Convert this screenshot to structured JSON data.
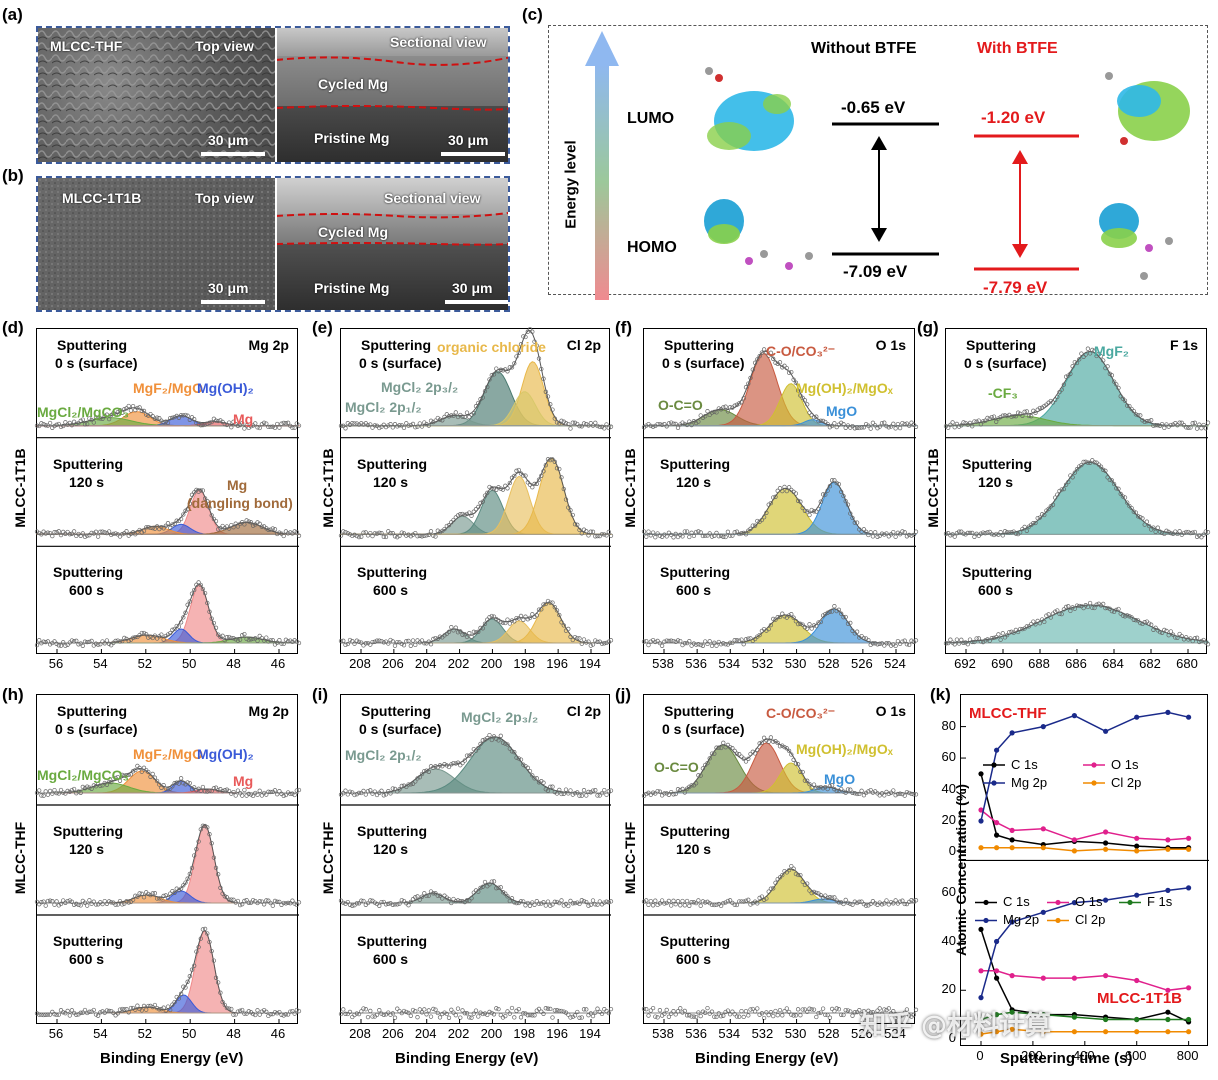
{
  "panels": {
    "a": "(a)",
    "b": "(b)",
    "c": "(c)",
    "d": "(d)",
    "e": "(e)",
    "f": "(f)",
    "g": "(g)",
    "h": "(h)",
    "i": "(i)",
    "j": "(j)",
    "k": "(k)"
  },
  "sem": {
    "a": {
      "sample": "MLCC-THF",
      "top": "Top view",
      "section": "Sectional view",
      "cycled": "Cycled Mg",
      "pristine": "Pristine Mg",
      "scale": "30 μm"
    },
    "b": {
      "sample": "MLCC-1T1B",
      "top": "Top view",
      "section": "Sectional view",
      "cycled": "Cycled Mg",
      "pristine": "Pristine Mg",
      "scale": "30 μm"
    }
  },
  "energy": {
    "axis_label": "Energy level",
    "without": "Without BTFE",
    "with": "With BTFE",
    "lumo": "LUMO",
    "homo": "HOMO",
    "without_lumo": "-0.65 eV",
    "without_homo": "-7.09 eV",
    "with_lumo": "-1.20 eV",
    "with_homo": "-7.79 eV",
    "red": "#e31a1c"
  },
  "xps": {
    "sputter0": "Sputtering",
    "sputter0b": "0 s (surface)",
    "sputter120": "Sputtering",
    "sputter120b": "120 s",
    "sputter600": "Sputtering",
    "sputter600b": "600 s",
    "mg2p": "Mg 2p",
    "cl2p": "Cl 2p",
    "o1s": "O 1s",
    "f1s": "F 1s",
    "xlabel": "Binding Energy (eV)",
    "ylabel_1t1b": "MLCC-1T1B",
    "ylabel_thf": "MLCC-THF",
    "mg_ticks": [
      "56",
      "54",
      "52",
      "50",
      "48",
      "46"
    ],
    "cl_ticks": [
      "208",
      "206",
      "204",
      "202",
      "200",
      "198",
      "196",
      "194"
    ],
    "o_ticks": [
      "538",
      "536",
      "534",
      "532",
      "530",
      "528",
      "526",
      "524"
    ],
    "f_ticks": [
      "692",
      "690",
      "688",
      "686",
      "684",
      "682",
      "680"
    ],
    "labels": {
      "mgf2mgo": "MgF₂/MgO",
      "mgoh2": "Mg(OH)₂",
      "mgcl2co3": "MgCl₂/MgCO₃",
      "mg": "Mg",
      "mg_dangling": "Mg",
      "mg_dangling2": "(dangling bond)",
      "organic_chloride": "organic chloride",
      "mgcl2_32": "MgCl₂ 2p₃/₂",
      "mgcl2_12": "MgCl₂ 2p₁/₂",
      "co_co3": "C-O/CO₃²⁻",
      "mgoh2_mgox": "Mg(OH)₂/MgOₓ",
      "oco": "O-C=O",
      "mgo": "MgO",
      "mgf2": "MgF₂",
      "cf3": "-CF₃"
    }
  },
  "chart_data": {
    "type": "line",
    "xlabel": "Sputtering time (s)",
    "ylabel": "Atomic Concentration (%)",
    "x": [
      0,
      60,
      120,
      240,
      360,
      480,
      600,
      720,
      800
    ],
    "panels": [
      {
        "title": "MLCC-THF",
        "ylim": [
          0,
          95
        ],
        "yticks": [
          "0",
          "20",
          "40",
          "60",
          "80"
        ],
        "series": [
          {
            "name": "C 1s",
            "color": "#000000",
            "values": [
              50,
              11,
              8,
              5,
              7,
              6,
              4,
              3,
              3
            ]
          },
          {
            "name": "O 1s",
            "color": "#e0208c",
            "values": [
              27,
              19,
              14,
              15,
              8,
              13,
              9,
              8,
              9
            ]
          },
          {
            "name": "Mg 2p",
            "color": "#1a2a8a",
            "values": [
              20,
              65,
              76,
              80,
              87,
              77,
              86,
              89,
              86
            ]
          },
          {
            "name": "Cl 2p",
            "color": "#f08a00",
            "values": [
              3,
              3,
              3,
              3,
              1,
              2,
              1,
              2,
              2
            ]
          }
        ]
      },
      {
        "title": "MLCC-1T1B",
        "ylim": [
          0,
          70
        ],
        "yticks": [
          "0",
          "20",
          "40",
          "60"
        ],
        "series": [
          {
            "name": "C 1s",
            "color": "#000000",
            "values": [
              45,
              25,
              12,
              10,
              10,
              9,
              8,
              11,
              7
            ]
          },
          {
            "name": "O 1s",
            "color": "#e0208c",
            "values": [
              28,
              28,
              26,
              25,
              25,
              26,
              24,
              20,
              21
            ]
          },
          {
            "name": "F 1s",
            "color": "#1f7a1f",
            "values": [
              8,
              10,
              11,
              10,
              9,
              8,
              8,
              8,
              8
            ]
          },
          {
            "name": "Mg 2p",
            "color": "#1a2a8a",
            "values": [
              17,
              40,
              48,
              52,
              56,
              57,
              59,
              61,
              62
            ]
          },
          {
            "name": "Cl 2p",
            "color": "#f08a00",
            "values": [
              2,
              3,
              4,
              3,
              3,
              3,
              3,
              3,
              3
            ]
          }
        ]
      }
    ],
    "xticks": [
      "0",
      "200",
      "400",
      "600",
      "800"
    ]
  }
}
